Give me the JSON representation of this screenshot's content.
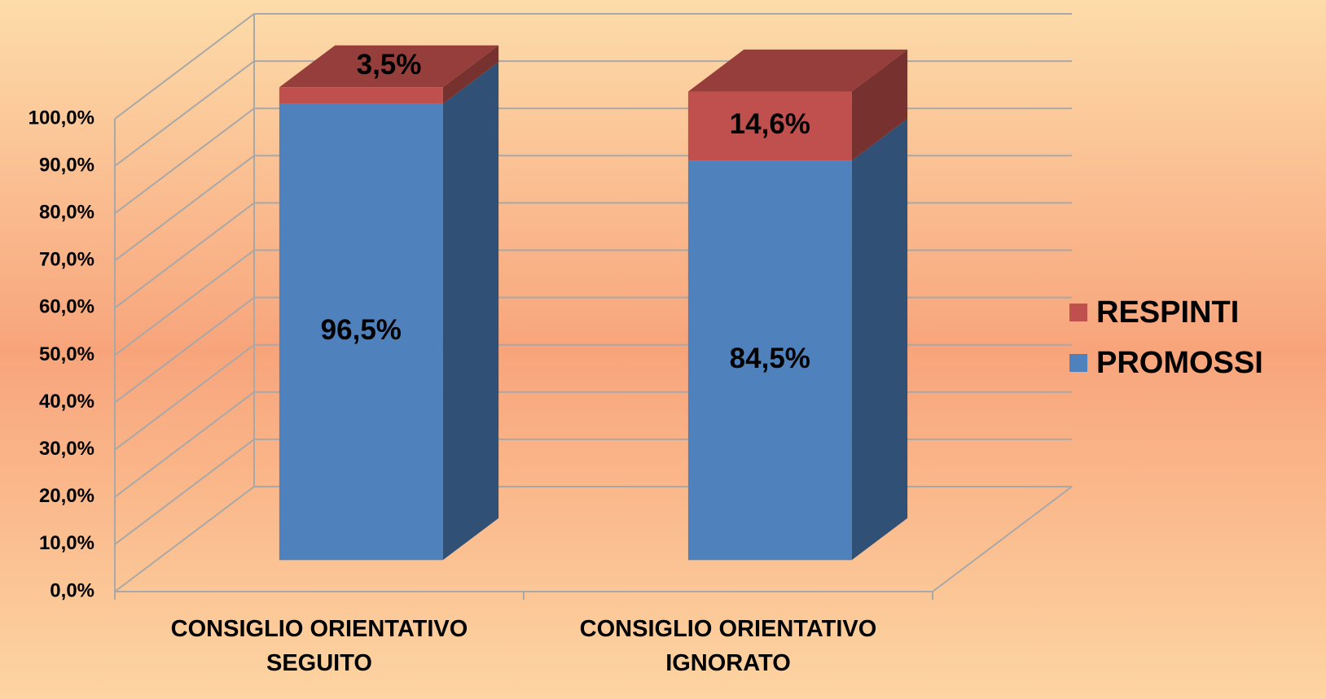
{
  "chart_data": {
    "type": "bar3d_stacked",
    "categories": [
      "CONSIGLIO ORIENTATIVO SEGUITO",
      "CONSIGLIO ORIENTATIVO IGNORATO"
    ],
    "series": [
      {
        "name": "PROMOSSI",
        "color": "#4f81bd",
        "values": [
          96.5,
          84.5
        ],
        "value_labels": [
          "96,5%",
          "84,5%"
        ]
      },
      {
        "name": "RESPINTI",
        "color": "#c0504d",
        "values": [
          3.5,
          14.6
        ],
        "value_labels": [
          "3,5%",
          "14,6%"
        ]
      }
    ],
    "ylim": [
      0,
      100
    ],
    "yticks": [
      {
        "value": 0,
        "label": "0,0%"
      },
      {
        "value": 10,
        "label": "10,0%"
      },
      {
        "value": 20,
        "label": "20,0%"
      },
      {
        "value": 30,
        "label": "30,0%"
      },
      {
        "value": 40,
        "label": "40,0%"
      },
      {
        "value": 50,
        "label": "50,0%"
      },
      {
        "value": 60,
        "label": "60,0%"
      },
      {
        "value": 70,
        "label": "70,0%"
      },
      {
        "value": 80,
        "label": "80,0%"
      },
      {
        "value": 90,
        "label": "90,0%"
      },
      {
        "value": 100,
        "label": "100,0%"
      }
    ],
    "grid": true,
    "legend": "right"
  }
}
